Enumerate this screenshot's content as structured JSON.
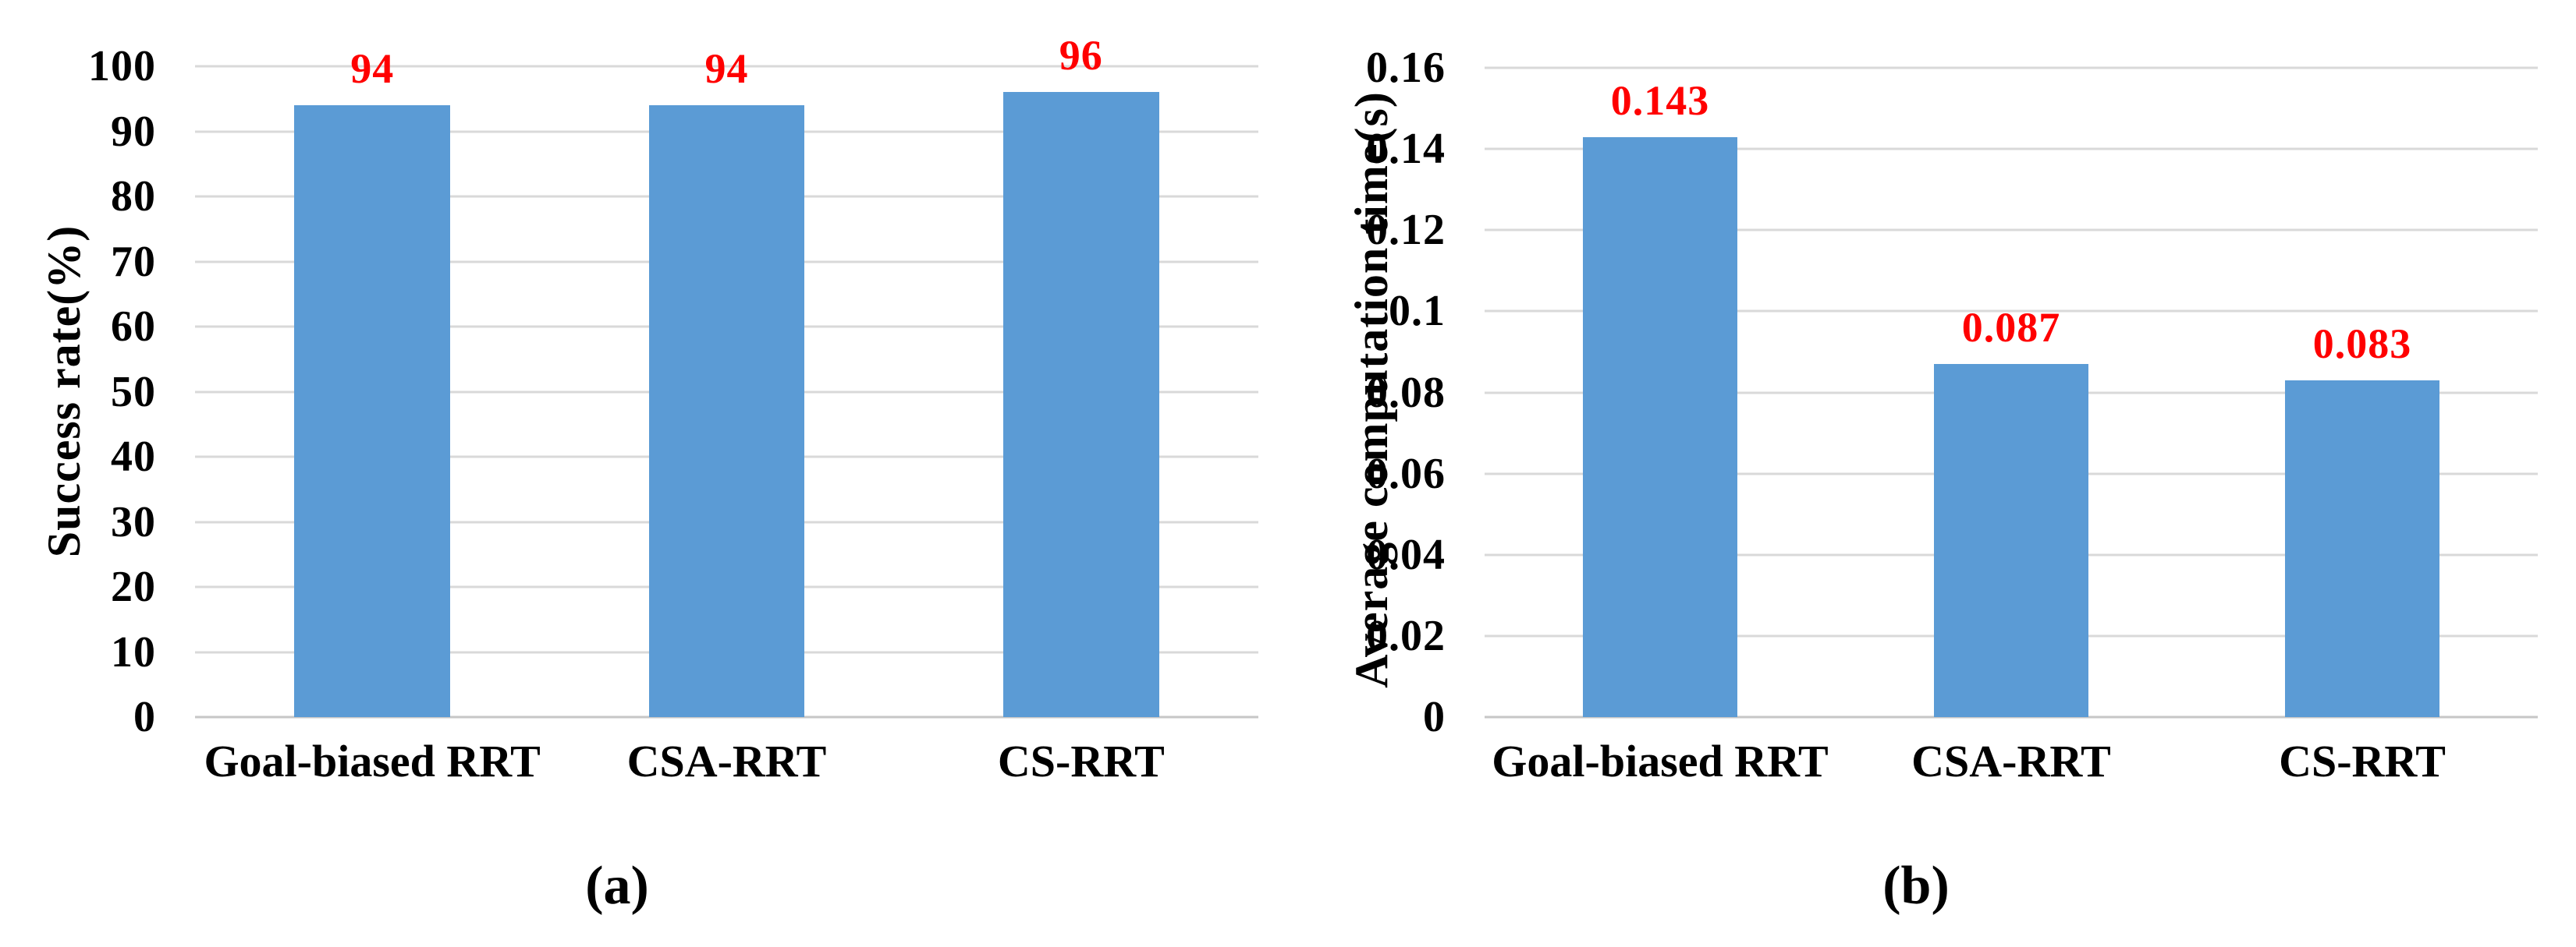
{
  "chart_data": [
    {
      "type": "bar",
      "panel": "left",
      "caption": "(a)",
      "title": "",
      "xlabel": "",
      "ylabel": "Success rate(%)",
      "categories": [
        "Goal-biased RRT",
        "CSA-RRT",
        "CS-RRT"
      ],
      "values": [
        94,
        94,
        96
      ],
      "value_labels": [
        "94",
        "94",
        "96"
      ],
      "ylim": [
        0,
        100
      ],
      "ytick_interval": 10,
      "ytick_labels": [
        "100",
        "90",
        "80",
        "70",
        "60",
        "50",
        "40",
        "30",
        "20",
        "10",
        "0"
      ],
      "grid": true,
      "legend": false,
      "bar_color": "#5B9BD5",
      "grid_color": "#D9D9D9",
      "axis_line_color": "#C6C6C6",
      "value_label_color": "#FF0000",
      "text_color": "#000000"
    },
    {
      "type": "bar",
      "panel": "right",
      "caption": "(b)",
      "title": "",
      "xlabel": "",
      "ylabel": "Average computation time(s)",
      "categories": [
        "Goal-biased RRT",
        "CSA-RRT",
        "CS-RRT"
      ],
      "values": [
        0.143,
        0.087,
        0.083
      ],
      "value_labels": [
        "0.143",
        "0.087",
        "0.083"
      ],
      "ylim": [
        0,
        0.16
      ],
      "ytick_interval": 0.02,
      "ytick_labels": [
        "0.16",
        "0.14",
        "0.12",
        "0.1",
        "0.08",
        "0.06",
        "0.04",
        "0.02",
        "0"
      ],
      "grid": true,
      "legend": false,
      "bar_color": "#5B9BD5",
      "grid_color": "#D9D9D9",
      "axis_line_color": "#C6C6C6",
      "value_label_color": "#FF0000",
      "text_color": "#000000"
    }
  ],
  "background_color": "#FFFFFF"
}
